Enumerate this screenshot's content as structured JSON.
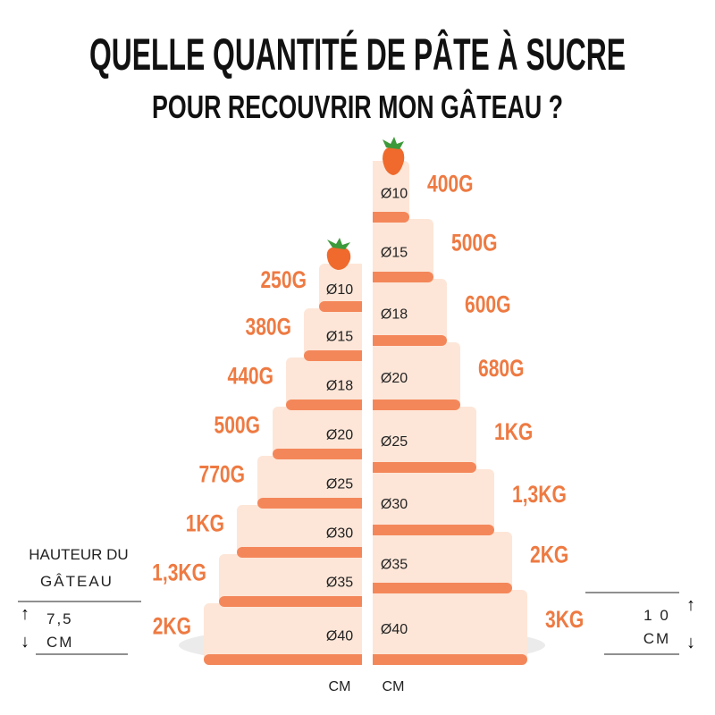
{
  "title": {
    "line1": "QUELLE QUANTITÉ DE PÂTE À SUCRE",
    "line2": "POUR RECOUVRIR MON GÂTEAU ?"
  },
  "height_legend": {
    "line1": "HAUTEUR DU",
    "line2": "GÂTEAU"
  },
  "left_cake": {
    "height_value": "7,5",
    "height_unit": "CM",
    "unit": "CM",
    "tiers": [
      {
        "diameter": "Ø10",
        "amount": "250G"
      },
      {
        "diameter": "Ø15",
        "amount": "380G"
      },
      {
        "diameter": "Ø18",
        "amount": "440G"
      },
      {
        "diameter": "Ø20",
        "amount": "500G"
      },
      {
        "diameter": "Ø25",
        "amount": "770G"
      },
      {
        "diameter": "Ø30",
        "amount": "1KG"
      },
      {
        "diameter": "Ø35",
        "amount": "1,3KG"
      },
      {
        "diameter": "Ø40",
        "amount": "2KG"
      }
    ]
  },
  "right_cake": {
    "height_value": "1 0",
    "height_unit": "CM",
    "unit": "CM",
    "tiers": [
      {
        "diameter": "Ø10",
        "amount": "400G"
      },
      {
        "diameter": "Ø15",
        "amount": "500G"
      },
      {
        "diameter": "Ø18",
        "amount": "600G"
      },
      {
        "diameter": "Ø20",
        "amount": "680G"
      },
      {
        "diameter": "Ø25",
        "amount": "1KG"
      },
      {
        "diameter": "Ø30",
        "amount": "1,3KG"
      },
      {
        "diameter": "Ø35",
        "amount": "2KG"
      },
      {
        "diameter": "Ø40",
        "amount": "3KG"
      }
    ]
  }
}
